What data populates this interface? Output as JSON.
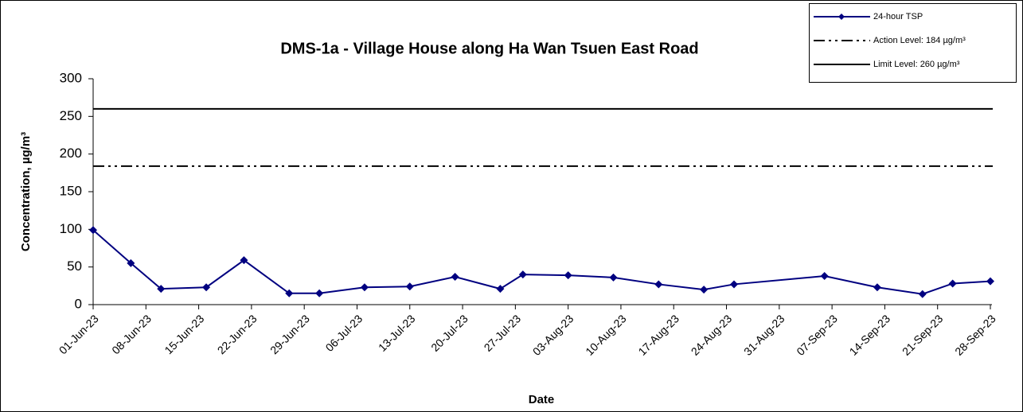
{
  "chart_data": {
    "type": "line",
    "title": "DMS-1a - Village House along Ha Wan Tsuen East Road",
    "x_label": "Date",
    "y_label": "Concentration, µg/m³",
    "x": [
      "2023-06-01",
      "2023-06-06",
      "2023-06-10",
      "2023-06-16",
      "2023-06-21",
      "2023-06-27",
      "2023-07-01",
      "2023-07-07",
      "2023-07-13",
      "2023-07-19",
      "2023-07-25",
      "2023-07-28",
      "2023-08-03",
      "2023-08-09",
      "2023-08-15",
      "2023-08-21",
      "2023-08-25",
      "2023-09-06",
      "2023-09-13",
      "2023-09-19",
      "2023-09-23",
      "2023-09-28"
    ],
    "series": [
      {
        "name": "24-hour TSP",
        "color": "#000080",
        "values": [
          99,
          55,
          21,
          23,
          59,
          15,
          15,
          23,
          24,
          37,
          21,
          40,
          39,
          36,
          27,
          20,
          27,
          38,
          23,
          14,
          28,
          31
        ]
      }
    ],
    "reference_lines": [
      {
        "name": "Action Level: 184 µg/m³",
        "value": 184,
        "style": "dash-dot-dot",
        "color": "#000000"
      },
      {
        "name": "Limit Level: 260 µg/m³",
        "value": 260,
        "style": "solid",
        "color": "#000000"
      }
    ],
    "xlim": [
      "2023-06-01",
      "2023-09-28"
    ],
    "xticks": [
      {
        "value": "2023-06-01",
        "label": "01-Jun-23"
      },
      {
        "value": "2023-06-08",
        "label": "08-Jun-23"
      },
      {
        "value": "2023-06-15",
        "label": "15-Jun-23"
      },
      {
        "value": "2023-06-22",
        "label": "22-Jun-23"
      },
      {
        "value": "2023-06-29",
        "label": "29-Jun-23"
      },
      {
        "value": "2023-07-06",
        "label": "06-Jul-23"
      },
      {
        "value": "2023-07-13",
        "label": "13-Jul-23"
      },
      {
        "value": "2023-07-20",
        "label": "20-Jul-23"
      },
      {
        "value": "2023-07-27",
        "label": "27-Jul-23"
      },
      {
        "value": "2023-08-03",
        "label": "03-Aug-23"
      },
      {
        "value": "2023-08-10",
        "label": "10-Aug-23"
      },
      {
        "value": "2023-08-17",
        "label": "17-Aug-23"
      },
      {
        "value": "2023-08-24",
        "label": "24-Aug-23"
      },
      {
        "value": "2023-08-31",
        "label": "31-Aug-23"
      },
      {
        "value": "2023-09-07",
        "label": "07-Sep-23"
      },
      {
        "value": "2023-09-14",
        "label": "14-Sep-23"
      },
      {
        "value": "2023-09-21",
        "label": "21-Sep-23"
      },
      {
        "value": "2023-09-28",
        "label": "28-Sep-23"
      }
    ],
    "ylim": [
      0,
      300
    ],
    "yticks": [
      0,
      50,
      100,
      150,
      200,
      250,
      300
    ],
    "grid": false,
    "legend": "top-right"
  }
}
